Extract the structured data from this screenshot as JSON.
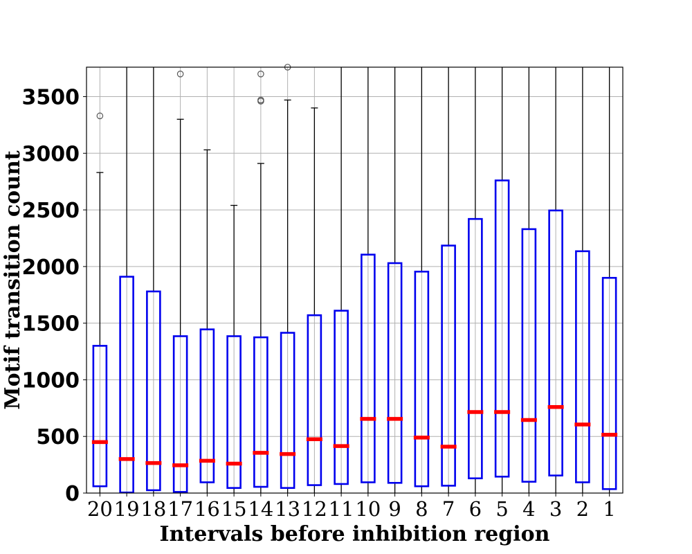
{
  "chart_data": {
    "type": "boxplot",
    "xlabel": "Intervals before inhibition region",
    "ylabel": "Motif transition count",
    "ylim": [
      0,
      3760
    ],
    "yticks": [
      0,
      500,
      1000,
      1500,
      2000,
      2500,
      3000,
      3500
    ],
    "grid": true,
    "categories": [
      "20",
      "19",
      "18",
      "17",
      "16",
      "15",
      "14",
      "13",
      "12",
      "11",
      "10",
      "9",
      "8",
      "7",
      "6",
      "5",
      "4",
      "3",
      "2",
      "1"
    ],
    "boxes": [
      {
        "label": "20",
        "whisker_low": 0,
        "q1": 60,
        "median": 450,
        "q3": 1300,
        "whisker_high": 2830,
        "outliers": [
          3330
        ]
      },
      {
        "label": "19",
        "whisker_low": 0,
        "q1": 5,
        "median": 300,
        "q3": 1910,
        "whisker_high": 3760,
        "outliers": []
      },
      {
        "label": "18",
        "whisker_low": 0,
        "q1": 25,
        "median": 265,
        "q3": 1780,
        "whisker_high": 3760,
        "outliers": []
      },
      {
        "label": "17",
        "whisker_low": 0,
        "q1": 10,
        "median": 245,
        "q3": 1385,
        "whisker_high": 3300,
        "outliers": [
          3700
        ]
      },
      {
        "label": "16",
        "whisker_low": 0,
        "q1": 95,
        "median": 285,
        "q3": 1445,
        "whisker_high": 3030,
        "outliers": []
      },
      {
        "label": "15",
        "whisker_low": 0,
        "q1": 45,
        "median": 260,
        "q3": 1385,
        "whisker_high": 2540,
        "outliers": []
      },
      {
        "label": "14",
        "whisker_low": 0,
        "q1": 55,
        "median": 355,
        "q3": 1375,
        "whisker_high": 2910,
        "outliers": [
          3460,
          3470,
          3700
        ]
      },
      {
        "label": "13",
        "whisker_low": 0,
        "q1": 45,
        "median": 345,
        "q3": 1415,
        "whisker_high": 3470,
        "outliers": [
          3760
        ]
      },
      {
        "label": "12",
        "whisker_low": 0,
        "q1": 70,
        "median": 475,
        "q3": 1570,
        "whisker_high": 3400,
        "outliers": []
      },
      {
        "label": "11",
        "whisker_low": 0,
        "q1": 80,
        "median": 415,
        "q3": 1610,
        "whisker_high": 3760,
        "outliers": []
      },
      {
        "label": "10",
        "whisker_low": 0,
        "q1": 95,
        "median": 655,
        "q3": 2105,
        "whisker_high": 3760,
        "outliers": []
      },
      {
        "label": "9",
        "whisker_low": 0,
        "q1": 90,
        "median": 655,
        "q3": 2030,
        "whisker_high": 3760,
        "outliers": []
      },
      {
        "label": "8",
        "whisker_low": 0,
        "q1": 60,
        "median": 490,
        "q3": 1955,
        "whisker_high": 3760,
        "outliers": []
      },
      {
        "label": "7",
        "whisker_low": 0,
        "q1": 65,
        "median": 410,
        "q3": 2185,
        "whisker_high": 3760,
        "outliers": []
      },
      {
        "label": "6",
        "whisker_low": 0,
        "q1": 130,
        "median": 715,
        "q3": 2420,
        "whisker_high": 3760,
        "outliers": []
      },
      {
        "label": "5",
        "whisker_low": 0,
        "q1": 145,
        "median": 715,
        "q3": 2760,
        "whisker_high": 3760,
        "outliers": []
      },
      {
        "label": "4",
        "whisker_low": 0,
        "q1": 100,
        "median": 645,
        "q3": 2330,
        "whisker_high": 3760,
        "outliers": []
      },
      {
        "label": "3",
        "whisker_low": 0,
        "q1": 155,
        "median": 760,
        "q3": 2495,
        "whisker_high": 3760,
        "outliers": []
      },
      {
        "label": "2",
        "whisker_low": 0,
        "q1": 95,
        "median": 605,
        "q3": 2135,
        "whisker_high": 3760,
        "outliers": []
      },
      {
        "label": "1",
        "whisker_low": 0,
        "q1": 35,
        "median": 515,
        "q3": 1900,
        "whisker_high": 3760,
        "outliers": []
      }
    ],
    "colors": {
      "box": "#0000ee",
      "median": "#ff0000",
      "whisker": "#000000",
      "grid": "#b0b0b0",
      "outlier": "#555555"
    }
  }
}
